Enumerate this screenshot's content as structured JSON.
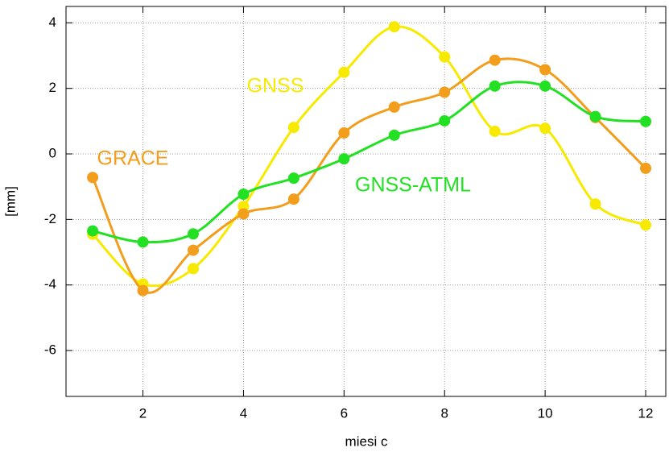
{
  "chart_data": {
    "type": "line",
    "xlabel": "miesi c",
    "ylabel": "[mm]",
    "x": [
      1,
      2,
      3,
      4,
      5,
      6,
      7,
      8,
      9,
      10,
      11,
      12
    ],
    "series": [
      {
        "name": "GNSS",
        "color": "#f7ea00",
        "values": [
          -2.45,
          -3.97,
          -3.5,
          -1.6,
          0.81,
          2.49,
          3.88,
          2.96,
          0.69,
          0.78,
          -1.53,
          -2.17
        ]
      },
      {
        "name": "GRACE",
        "color": "#f29d1c",
        "values": [
          -0.72,
          -4.17,
          -2.94,
          -1.83,
          -1.38,
          0.64,
          1.43,
          1.88,
          2.86,
          2.57,
          1.11,
          -0.44
        ]
      },
      {
        "name": "GNSS-ATML",
        "color": "#22e022",
        "values": [
          -2.35,
          -2.69,
          -2.44,
          -1.23,
          -0.74,
          -0.15,
          0.57,
          1.01,
          2.07,
          2.07,
          1.14,
          0.99
        ]
      }
    ],
    "xlim": [
      0.47,
      12.4
    ],
    "ylim": [
      -7.4,
      4.5
    ],
    "xticks": [
      2,
      4,
      6,
      8,
      10,
      12
    ],
    "yticks": [
      -6,
      -4,
      -2,
      0,
      2,
      4
    ],
    "grid": true
  }
}
